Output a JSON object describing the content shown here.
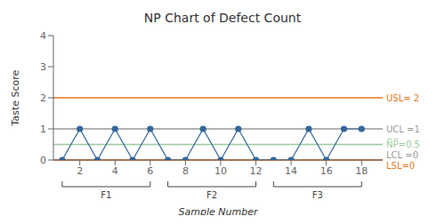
{
  "chart_data": {
    "type": "line",
    "title": "NP Chart of Defect Count",
    "ylabel": "Taste Score",
    "xlabel": "Sample Number",
    "x": [
      1,
      2,
      3,
      4,
      5,
      6,
      7,
      8,
      9,
      10,
      11,
      12,
      13,
      14,
      15,
      16,
      17,
      18
    ],
    "values": [
      0,
      1,
      0,
      1,
      0,
      1,
      0,
      0,
      1,
      0,
      1,
      0,
      0,
      0,
      1,
      0,
      1,
      1
    ],
    "color": "#336699",
    "marker": "circle",
    "xlim": [
      0.5,
      19.2
    ],
    "xticks": [
      2,
      4,
      6,
      8,
      10,
      12,
      14,
      16,
      18
    ],
    "ylim": [
      0,
      4
    ],
    "yticks": [
      0,
      1,
      2,
      3,
      4
    ],
    "grid": false,
    "annotations": [
      {
        "text": "USL= 2",
        "y": 2,
        "color": "#E87722"
      },
      {
        "text": "UCL =1",
        "y": 1,
        "color": "#999999"
      },
      {
        "text": "N̅P̅=0.5",
        "y": 0.5,
        "color": "#99CC99"
      },
      {
        "text": "LCL =0",
        "y": 0,
        "color": "#999999"
      },
      {
        "text": "LSL=0",
        "y": 0,
        "color": "#E87722"
      }
    ],
    "groups": [
      {
        "label": "F1",
        "x": [
          1,
          6
        ]
      },
      {
        "label": "F2",
        "x": [
          7,
          12
        ]
      },
      {
        "label": "F3",
        "x": [
          13,
          18
        ]
      }
    ]
  }
}
